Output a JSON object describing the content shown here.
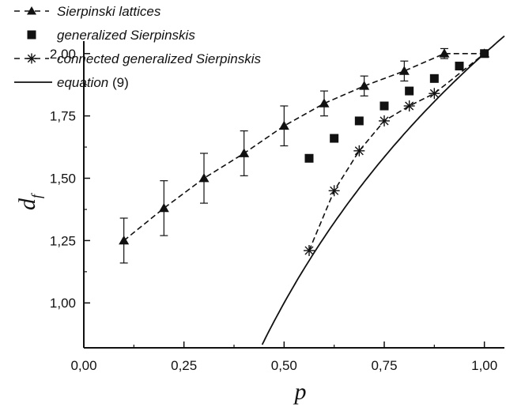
{
  "chart_data": {
    "type": "line",
    "title": "",
    "xlabel": "p",
    "ylabel": "d",
    "ylabel_subscript": "f",
    "xlim": [
      0.0,
      1.05
    ],
    "ylim": [
      0.82,
      2.05
    ],
    "x_ticks": [
      0.0,
      0.25,
      0.5,
      0.75,
      1.0
    ],
    "x_tick_labels": [
      "0,00",
      "0,25",
      "0,50",
      "0,75",
      "1,00"
    ],
    "y_ticks": [
      1.0,
      1.25,
      1.5,
      1.75,
      2.0
    ],
    "y_tick_labels": [
      "1,00",
      "1,25",
      "1,50",
      "1,75",
      "2,00"
    ],
    "grid": false,
    "legend_position": "top-left",
    "series": [
      {
        "name": "Sierpinski lattices",
        "marker": "triangle",
        "line": "dashed",
        "x": [
          0.1,
          0.2,
          0.3,
          0.4,
          0.5,
          0.6,
          0.7,
          0.8,
          0.9,
          1.0
        ],
        "y": [
          1.25,
          1.38,
          1.5,
          1.6,
          1.71,
          1.8,
          1.87,
          1.93,
          2.0,
          2.0
        ],
        "err": [
          0.09,
          0.11,
          0.1,
          0.09,
          0.08,
          0.05,
          0.04,
          0.04,
          0.02,
          0.0
        ]
      },
      {
        "name": "generalized Sierpinskis",
        "marker": "square",
        "line": "none",
        "x": [
          0.5625,
          0.625,
          0.6875,
          0.75,
          0.8125,
          0.875,
          0.9375,
          1.0
        ],
        "y": [
          1.58,
          1.66,
          1.73,
          1.79,
          1.85,
          1.9,
          1.95,
          2.0
        ]
      },
      {
        "name": "connected generalized Sierpinskis",
        "marker": "asterisk",
        "line": "dashed",
        "x": [
          0.5625,
          0.625,
          0.6875,
          0.75,
          0.8125,
          0.875,
          1.0
        ],
        "y": [
          1.21,
          1.45,
          1.61,
          1.73,
          1.79,
          1.84,
          2.0
        ]
      },
      {
        "name": "equation (9)",
        "marker": "none",
        "line": "solid",
        "equation": "d_f = 2 + ln(p)/ln(2)",
        "x_range": [
          0.186,
          1.05
        ]
      }
    ]
  }
}
